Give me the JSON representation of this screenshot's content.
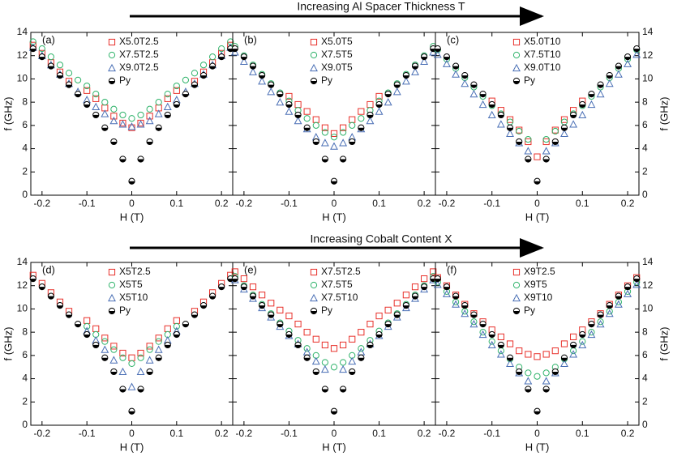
{
  "arrows": [
    {
      "label": "Increasing Al Spacer Thickness T"
    },
    {
      "label": "Increasing Cobalt Content X"
    }
  ],
  "chart_data": [
    {
      "type": "scatter",
      "label": "(a)",
      "xlabel": "H (T)",
      "ylabel": "f (GHz)",
      "ylabel_side": "left",
      "xlim": [
        -0.225,
        0.225
      ],
      "ylim": [
        0,
        14
      ],
      "xticks": [
        -0.2,
        -0.1,
        0,
        0.1,
        0.2
      ],
      "yticks": [
        0,
        2,
        4,
        6,
        8,
        10,
        12,
        14
      ],
      "x": [
        -0.22,
        -0.2,
        -0.18,
        -0.16,
        -0.14,
        -0.12,
        -0.1,
        -0.08,
        -0.06,
        -0.04,
        -0.02,
        0,
        0.02,
        0.04,
        0.06,
        0.08,
        0.1,
        0.12,
        0.14,
        0.16,
        0.18,
        0.2,
        0.22
      ],
      "series": [
        {
          "name": "X5.0T2.5",
          "color": "#e8302a",
          "marker": "square",
          "values": [
            12.9,
            12.2,
            11.4,
            10.6,
            9.8,
            null,
            9.0,
            8.3,
            7.5,
            6.8,
            6.2,
            5.8,
            6.2,
            6.8,
            7.5,
            8.3,
            9.0,
            null,
            9.8,
            10.6,
            11.4,
            12.2,
            12.9
          ]
        },
        {
          "name": "X7.5T2.5",
          "color": "#2fb36a",
          "marker": "circle",
          "values": [
            13.2,
            12.6,
            11.9,
            11.2,
            10.5,
            9.9,
            9.4,
            8.7,
            8.0,
            7.4,
            6.9,
            6.6,
            6.9,
            7.4,
            8.0,
            8.7,
            9.4,
            9.9,
            10.5,
            11.2,
            11.9,
            12.6,
            13.2
          ]
        },
        {
          "name": "X9.0T2.5",
          "color": "#4a6fb5",
          "marker": "triangle",
          "values": [
            12.7,
            12.0,
            11.2,
            10.4,
            9.6,
            8.9,
            8.2,
            7.6,
            7.0,
            6.4,
            6.1,
            5.9,
            6.1,
            6.4,
            7.0,
            7.6,
            8.2,
            8.9,
            9.6,
            10.4,
            11.2,
            12.0,
            12.7
          ]
        },
        {
          "name": "Py",
          "color": "#000000",
          "marker": "half",
          "values": [
            12.6,
            11.9,
            11.1,
            10.3,
            9.5,
            8.7,
            7.8,
            6.9,
            5.8,
            4.6,
            3.1,
            1.2,
            3.1,
            4.6,
            5.8,
            6.9,
            7.8,
            8.7,
            9.5,
            10.3,
            11.1,
            11.9,
            12.6
          ]
        }
      ]
    },
    {
      "type": "scatter",
      "label": "(b)",
      "xlabel": "H (T)",
      "ylabel_side": "none",
      "xlim": [
        -0.225,
        0.225
      ],
      "ylim": [
        0,
        14
      ],
      "xticks": [
        -0.2,
        -0.1,
        0,
        0.1,
        0.2
      ],
      "yticks": [
        0,
        2,
        4,
        6,
        8,
        10,
        12,
        14
      ],
      "x": [
        -0.22,
        -0.2,
        -0.18,
        -0.16,
        -0.14,
        -0.12,
        -0.1,
        -0.08,
        -0.06,
        -0.04,
        -0.02,
        0,
        0.02,
        0.04,
        0.06,
        0.08,
        0.1,
        0.12,
        0.14,
        0.16,
        0.18,
        0.2,
        0.22
      ],
      "series": [
        {
          "name": "X5.0T5",
          "color": "#e8302a",
          "marker": "square",
          "values": [
            null,
            null,
            null,
            null,
            null,
            null,
            8.5,
            7.8,
            7.2,
            6.5,
            5.8,
            5.3,
            5.8,
            6.5,
            7.2,
            7.8,
            8.5,
            null,
            null,
            null,
            null,
            null,
            null
          ]
        },
        {
          "name": "X7.5T5",
          "color": "#2fb36a",
          "marker": "circle",
          "values": [
            12.8,
            12.0,
            11.2,
            10.4,
            9.6,
            8.8,
            8.1,
            7.3,
            6.6,
            6.0,
            5.4,
            5.0,
            5.4,
            6.0,
            6.6,
            7.3,
            8.1,
            8.8,
            9.6,
            10.4,
            11.2,
            12.0,
            12.8
          ]
        },
        {
          "name": "X9.0T5",
          "color": "#4a6fb5",
          "marker": "triangle",
          "values": [
            12.3,
            11.5,
            10.6,
            9.8,
            8.9,
            8.0,
            7.2,
            6.4,
            5.7,
            5.0,
            4.5,
            4.2,
            4.5,
            5.0,
            5.7,
            6.4,
            7.2,
            8.0,
            8.9,
            9.8,
            10.6,
            11.5,
            12.3
          ]
        },
        {
          "name": "Py",
          "color": "#000000",
          "marker": "half",
          "values": [
            12.6,
            11.9,
            11.1,
            10.3,
            9.5,
            8.7,
            7.8,
            6.9,
            5.8,
            4.6,
            3.1,
            1.2,
            3.1,
            4.6,
            5.8,
            6.9,
            7.8,
            8.7,
            9.5,
            10.3,
            11.1,
            11.9,
            12.6
          ]
        }
      ]
    },
    {
      "type": "scatter",
      "label": "(c)",
      "xlabel": "H (T)",
      "ylabel": "f (GHz)",
      "ylabel_side": "right",
      "xlim": [
        -0.225,
        0.225
      ],
      "ylim": [
        0,
        14
      ],
      "xticks": [
        -0.2,
        -0.1,
        0,
        0.1,
        0.2
      ],
      "yticks": [
        0,
        2,
        4,
        6,
        8,
        10,
        12,
        14
      ],
      "x": [
        -0.22,
        -0.2,
        -0.18,
        -0.16,
        -0.14,
        -0.12,
        -0.1,
        -0.08,
        -0.06,
        -0.04,
        -0.02,
        0,
        0.02,
        0.04,
        0.06,
        0.08,
        0.1,
        0.12,
        0.14,
        0.16,
        0.18,
        0.2,
        0.22
      ],
      "series": [
        {
          "name": "X5.0T10",
          "color": "#e8302a",
          "marker": "square",
          "values": [
            null,
            null,
            null,
            null,
            null,
            null,
            8.1,
            7.3,
            6.5,
            5.6,
            4.6,
            3.3,
            4.6,
            5.6,
            6.5,
            7.3,
            8.1,
            null,
            null,
            null,
            null,
            null,
            null
          ]
        },
        {
          "name": "X7.5T10",
          "color": "#2fb36a",
          "marker": "circle",
          "values": [
            12.5,
            11.7,
            10.9,
            10.1,
            9.3,
            8.5,
            7.7,
            7.0,
            6.3,
            5.5,
            4.8,
            null,
            4.8,
            5.5,
            6.3,
            7.0,
            7.7,
            8.5,
            9.3,
            10.1,
            10.9,
            11.7,
            12.5
          ]
        },
        {
          "name": "X9.0T10",
          "color": "#4a6fb5",
          "marker": "triangle",
          "values": [
            12.1,
            11.3,
            10.4,
            9.6,
            8.7,
            7.8,
            6.9,
            6.1,
            5.3,
            4.5,
            3.8,
            null,
            3.8,
            4.5,
            5.3,
            6.1,
            6.9,
            7.8,
            8.7,
            9.6,
            10.4,
            11.3,
            12.1
          ]
        },
        {
          "name": "Py",
          "color": "#000000",
          "marker": "half",
          "values": [
            12.6,
            11.9,
            11.1,
            10.3,
            9.5,
            8.7,
            7.8,
            6.9,
            5.8,
            4.6,
            3.1,
            1.2,
            3.1,
            4.6,
            5.8,
            6.9,
            7.8,
            8.7,
            9.5,
            10.3,
            11.1,
            11.9,
            12.6
          ]
        }
      ]
    },
    {
      "type": "scatter",
      "label": "(d)",
      "xlabel": "H (T)",
      "ylabel": "f (GHz)",
      "ylabel_side": "left",
      "xlim": [
        -0.225,
        0.225
      ],
      "ylim": [
        0,
        14
      ],
      "xticks": [
        -0.2,
        -0.1,
        0,
        0.1,
        0.2
      ],
      "yticks": [
        0,
        2,
        4,
        6,
        8,
        10,
        12,
        14
      ],
      "x": [
        -0.22,
        -0.2,
        -0.18,
        -0.16,
        -0.14,
        -0.12,
        -0.1,
        -0.08,
        -0.06,
        -0.04,
        -0.02,
        0,
        0.02,
        0.04,
        0.06,
        0.08,
        0.1,
        0.12,
        0.14,
        0.16,
        0.18,
        0.2,
        0.22
      ],
      "series": [
        {
          "name": "X5T2.5",
          "color": "#e8302a",
          "marker": "square",
          "values": [
            12.9,
            12.2,
            11.4,
            10.6,
            9.8,
            null,
            9.0,
            8.3,
            7.5,
            6.8,
            6.2,
            5.8,
            6.2,
            6.8,
            7.5,
            8.3,
            9.0,
            null,
            9.8,
            10.6,
            11.4,
            12.2,
            12.9
          ]
        },
        {
          "name": "X5T5",
          "color": "#2fb36a",
          "marker": "circle",
          "values": [
            null,
            null,
            null,
            null,
            null,
            null,
            8.5,
            7.8,
            7.2,
            6.5,
            5.8,
            5.3,
            5.8,
            6.5,
            7.2,
            7.8,
            8.5,
            null,
            null,
            null,
            null,
            null,
            null
          ]
        },
        {
          "name": "X5T10",
          "color": "#4a6fb5",
          "marker": "triangle",
          "values": [
            null,
            null,
            null,
            null,
            null,
            null,
            8.1,
            7.3,
            6.5,
            5.6,
            4.6,
            3.3,
            4.6,
            5.6,
            6.5,
            7.3,
            8.1,
            null,
            null,
            null,
            null,
            null,
            null
          ]
        },
        {
          "name": "Py",
          "color": "#000000",
          "marker": "half",
          "values": [
            12.6,
            11.9,
            11.1,
            10.3,
            9.5,
            8.7,
            7.8,
            6.9,
            5.8,
            4.6,
            3.1,
            1.2,
            3.1,
            4.6,
            5.8,
            6.9,
            7.8,
            8.7,
            9.5,
            10.3,
            11.1,
            11.9,
            12.6
          ]
        }
      ]
    },
    {
      "type": "scatter",
      "label": "(e)",
      "xlabel": "H (T)",
      "ylabel_side": "none",
      "xlim": [
        -0.225,
        0.225
      ],
      "ylim": [
        0,
        14
      ],
      "xticks": [
        -0.2,
        -0.1,
        0,
        0.1,
        0.2
      ],
      "yticks": [
        0,
        2,
        4,
        6,
        8,
        10,
        12,
        14
      ],
      "x": [
        -0.22,
        -0.2,
        -0.18,
        -0.16,
        -0.14,
        -0.12,
        -0.1,
        -0.08,
        -0.06,
        -0.04,
        -0.02,
        0,
        0.02,
        0.04,
        0.06,
        0.08,
        0.1,
        0.12,
        0.14,
        0.16,
        0.18,
        0.2,
        0.22
      ],
      "series": [
        {
          "name": "X7.5T2.5",
          "color": "#e8302a",
          "marker": "square",
          "values": [
            13.2,
            12.6,
            11.9,
            11.2,
            10.5,
            9.9,
            9.4,
            8.7,
            8.0,
            7.4,
            6.9,
            6.6,
            6.9,
            7.4,
            8.0,
            8.7,
            9.4,
            9.9,
            10.5,
            11.2,
            11.9,
            12.6,
            13.2
          ]
        },
        {
          "name": "X7.5T5",
          "color": "#2fb36a",
          "marker": "circle",
          "values": [
            12.8,
            12.0,
            11.2,
            10.4,
            9.6,
            8.8,
            8.1,
            7.3,
            6.6,
            6.0,
            5.4,
            5.0,
            5.4,
            6.0,
            6.6,
            7.3,
            8.1,
            8.8,
            9.6,
            10.4,
            11.2,
            12.0,
            12.8
          ]
        },
        {
          "name": "X7.5T10",
          "color": "#4a6fb5",
          "marker": "triangle",
          "values": [
            12.5,
            11.7,
            10.9,
            10.1,
            9.3,
            8.5,
            7.7,
            7.0,
            6.3,
            5.5,
            4.8,
            null,
            4.8,
            5.5,
            6.3,
            7.0,
            7.7,
            8.5,
            9.3,
            10.1,
            10.9,
            11.7,
            12.5
          ]
        },
        {
          "name": "Py",
          "color": "#000000",
          "marker": "half",
          "values": [
            12.6,
            11.9,
            11.1,
            10.3,
            9.5,
            8.7,
            7.8,
            6.9,
            5.8,
            4.6,
            3.1,
            1.2,
            3.1,
            4.6,
            5.8,
            6.9,
            7.8,
            8.7,
            9.5,
            10.3,
            11.1,
            11.9,
            12.6
          ]
        }
      ]
    },
    {
      "type": "scatter",
      "label": "(f)",
      "xlabel": "H (T)",
      "ylabel": "f (GHz)",
      "ylabel_side": "right",
      "xlim": [
        -0.225,
        0.225
      ],
      "ylim": [
        0,
        14
      ],
      "xticks": [
        -0.2,
        -0.1,
        0,
        0.1,
        0.2
      ],
      "yticks": [
        0,
        2,
        4,
        6,
        8,
        10,
        12,
        14
      ],
      "x": [
        -0.22,
        -0.2,
        -0.18,
        -0.16,
        -0.14,
        -0.12,
        -0.1,
        -0.08,
        -0.06,
        -0.04,
        -0.02,
        0,
        0.02,
        0.04,
        0.06,
        0.08,
        0.1,
        0.12,
        0.14,
        0.16,
        0.18,
        0.2,
        0.22
      ],
      "series": [
        {
          "name": "X9T2.5",
          "color": "#e8302a",
          "marker": "square",
          "values": [
            12.7,
            12.0,
            11.2,
            10.4,
            9.6,
            8.9,
            8.2,
            7.6,
            7.0,
            6.4,
            6.1,
            5.9,
            6.1,
            6.4,
            7.0,
            7.6,
            8.2,
            8.9,
            9.6,
            10.4,
            11.2,
            12.0,
            12.7
          ]
        },
        {
          "name": "X9T5",
          "color": "#2fb36a",
          "marker": "circle",
          "values": [
            12.3,
            11.5,
            10.6,
            9.8,
            8.9,
            8.0,
            7.2,
            6.4,
            5.7,
            5.0,
            4.5,
            4.2,
            4.5,
            5.0,
            5.7,
            6.4,
            7.2,
            8.0,
            8.9,
            9.8,
            10.6,
            11.5,
            12.3
          ]
        },
        {
          "name": "X9T10",
          "color": "#4a6fb5",
          "marker": "triangle",
          "values": [
            12.1,
            11.3,
            10.4,
            9.6,
            8.7,
            7.8,
            6.9,
            6.1,
            5.3,
            4.5,
            3.8,
            null,
            3.8,
            4.5,
            5.3,
            6.1,
            6.9,
            7.8,
            8.7,
            9.6,
            10.4,
            11.3,
            12.1
          ]
        },
        {
          "name": "Py",
          "color": "#000000",
          "marker": "half",
          "values": [
            12.6,
            11.9,
            11.1,
            10.3,
            9.5,
            8.7,
            7.8,
            6.9,
            5.8,
            4.6,
            3.1,
            1.2,
            3.1,
            4.6,
            5.8,
            6.9,
            7.8,
            8.7,
            9.5,
            10.3,
            11.1,
            11.9,
            12.6
          ]
        }
      ]
    }
  ]
}
